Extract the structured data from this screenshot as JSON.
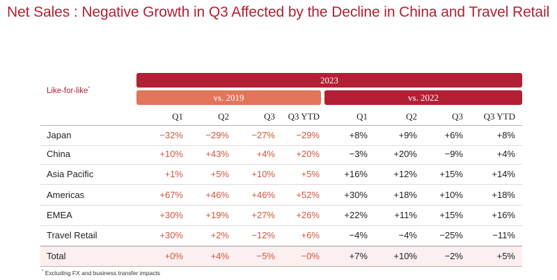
{
  "title": "Net Sales :  Negative Growth in Q3 Affected by the Decline in China and Travel Retail",
  "like_for_like_label": "Like-for-like",
  "like_for_like_marker": "*",
  "bands": {
    "year": "2023",
    "vs2019": "vs. 2019",
    "vs2022": "vs. 2022"
  },
  "columns": [
    "Q1",
    "Q2",
    "Q3",
    "Q3 YTD",
    "Q1",
    "Q2",
    "Q3",
    "Q3 YTD"
  ],
  "rows": [
    {
      "label": "Japan",
      "vs2019": [
        "−32%",
        "−29%",
        "−27%",
        "−29%"
      ],
      "vs2022": [
        "+8%",
        "+9%",
        "+6%",
        "+8%"
      ]
    },
    {
      "label": "China",
      "vs2019": [
        "+10%",
        "+43%",
        "+4%",
        "+20%"
      ],
      "vs2022": [
        "−3%",
        "+20%",
        "−9%",
        "+4%"
      ]
    },
    {
      "label": "Asia Pacific",
      "vs2019": [
        "+1%",
        "+5%",
        "+10%",
        "+5%"
      ],
      "vs2022": [
        "+16%",
        "+12%",
        "+15%",
        "+14%"
      ]
    },
    {
      "label": "Americas",
      "vs2019": [
        "+67%",
        "+46%",
        "+46%",
        "+52%"
      ],
      "vs2022": [
        "+30%",
        "+18%",
        "+10%",
        "+18%"
      ]
    },
    {
      "label": "EMEA",
      "vs2019": [
        "+30%",
        "+19%",
        "+27%",
        "+26%"
      ],
      "vs2022": [
        "+22%",
        "+11%",
        "+15%",
        "+16%"
      ]
    },
    {
      "label": "Travel Retail",
      "vs2019": [
        "+30%",
        "+2%",
        "−12%",
        "+6%"
      ],
      "vs2022": [
        "−4%",
        "−4%",
        "−25%",
        "−11%"
      ]
    },
    {
      "label": "Total",
      "vs2019": [
        "+0%",
        "+4%",
        "−5%",
        "−0%"
      ],
      "vs2022": [
        "+7%",
        "+10%",
        "−2%",
        "+5%"
      ]
    }
  ],
  "footnote_marker": "*",
  "footnote": " Excluding FX and business transfer impacts",
  "colors": {
    "accent": "#b31f34",
    "vs2019": "#e1765a",
    "vs2019_text": "#d2553d"
  }
}
